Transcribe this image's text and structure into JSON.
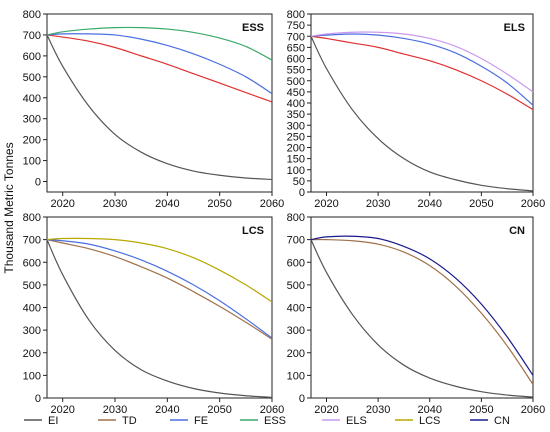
{
  "ylabel": "Thousand Metric Tonnes",
  "colors": {
    "EI": "#555555",
    "TD": "#a0704a",
    "FE": "#4a6ee0",
    "ESS": "#3aaa6a",
    "ELS": "#c99af0",
    "LCS": "#b8a800",
    "CN": "#1a1a8a",
    "REF": "#e03030"
  },
  "legend": [
    {
      "key": "EI",
      "label": "EI"
    },
    {
      "key": "TD",
      "label": "TD"
    },
    {
      "key": "FE",
      "label": "FE"
    },
    {
      "key": "ESS",
      "label": "ESS"
    },
    {
      "key": "ELS",
      "label": "ELS"
    },
    {
      "key": "LCS",
      "label": "LCS"
    },
    {
      "key": "CN",
      "label": "CN"
    }
  ],
  "chart_data": [
    {
      "type": "line",
      "title": "ESS",
      "xlim": [
        2017,
        2060
      ],
      "ylim": [
        -50,
        800
      ],
      "xticks": [
        "2020",
        "2030",
        "2040",
        "2050",
        "2060"
      ],
      "yticks": [
        "0",
        "100",
        "200",
        "300",
        "400",
        "500",
        "600",
        "700",
        "800"
      ],
      "x": [
        2017,
        2020,
        2025,
        2030,
        2035,
        2040,
        2045,
        2050,
        2055,
        2060
      ],
      "series": [
        {
          "key": "EI",
          "values": [
            700,
            550,
            360,
            225,
            140,
            85,
            50,
            30,
            17,
            10
          ]
        },
        {
          "key": "REF",
          "values": [
            700,
            690,
            670,
            640,
            600,
            560,
            515,
            470,
            425,
            380
          ]
        },
        {
          "key": "FE",
          "values": [
            700,
            705,
            705,
            700,
            680,
            650,
            610,
            560,
            500,
            420
          ]
        },
        {
          "key": "ESS",
          "values": [
            700,
            715,
            728,
            735,
            735,
            728,
            712,
            685,
            645,
            580
          ]
        }
      ]
    },
    {
      "type": "line",
      "title": "ELS",
      "xlim": [
        2017,
        2060
      ],
      "ylim": [
        0,
        800
      ],
      "xticks": [
        "2020",
        "2030",
        "2040",
        "2050",
        "2060"
      ],
      "yticks": [
        "0",
        "50",
        "100",
        "150",
        "200",
        "250",
        "300",
        "350",
        "400",
        "450",
        "500",
        "550",
        "600",
        "650",
        "700",
        "750",
        "800"
      ],
      "x": [
        2017,
        2020,
        2025,
        2030,
        2035,
        2040,
        2045,
        2050,
        2055,
        2060
      ],
      "series": [
        {
          "key": "EI",
          "values": [
            700,
            555,
            370,
            240,
            150,
            90,
            55,
            30,
            15,
            5
          ]
        },
        {
          "key": "REF",
          "values": [
            700,
            690,
            670,
            650,
            620,
            590,
            550,
            500,
            440,
            370
          ]
        },
        {
          "key": "FE",
          "values": [
            700,
            705,
            710,
            705,
            690,
            665,
            625,
            565,
            490,
            390
          ]
        },
        {
          "key": "ELS",
          "values": [
            700,
            710,
            718,
            718,
            710,
            690,
            655,
            600,
            530,
            450
          ]
        }
      ]
    },
    {
      "type": "line",
      "title": "LCS",
      "xlim": [
        2017,
        2060
      ],
      "ylim": [
        0,
        800
      ],
      "xticks": [
        "2020",
        "2030",
        "2040",
        "2050",
        "2060"
      ],
      "yticks": [
        "0",
        "100",
        "200",
        "300",
        "400",
        "500",
        "600",
        "700",
        "800"
      ],
      "x": [
        2017,
        2020,
        2025,
        2030,
        2035,
        2040,
        2045,
        2050,
        2055,
        2060
      ],
      "series": [
        {
          "key": "EI",
          "values": [
            700,
            545,
            345,
            210,
            125,
            75,
            42,
            22,
            10,
            3
          ]
        },
        {
          "key": "TD",
          "values": [
            700,
            685,
            660,
            625,
            580,
            530,
            470,
            405,
            335,
            260
          ]
        },
        {
          "key": "FE",
          "values": [
            700,
            695,
            680,
            650,
            610,
            560,
            500,
            430,
            350,
            265
          ]
        },
        {
          "key": "LCS",
          "values": [
            700,
            705,
            705,
            700,
            685,
            660,
            620,
            565,
            500,
            425
          ]
        }
      ]
    },
    {
      "type": "line",
      "title": "CN",
      "xlim": [
        2017,
        2060
      ],
      "ylim": [
        0,
        800
      ],
      "xticks": [
        "2020",
        "2030",
        "2040",
        "2050",
        "2060"
      ],
      "yticks": [
        "0",
        "100",
        "200",
        "300",
        "400",
        "500",
        "600",
        "700",
        "800"
      ],
      "x": [
        2017,
        2020,
        2025,
        2030,
        2035,
        2040,
        2045,
        2050,
        2055,
        2060
      ],
      "series": [
        {
          "key": "EI",
          "values": [
            700,
            555,
            370,
            235,
            145,
            88,
            52,
            28,
            13,
            4
          ]
        },
        {
          "key": "TD",
          "values": [
            700,
            700,
            695,
            680,
            645,
            585,
            495,
            375,
            230,
            60
          ]
        },
        {
          "key": "CN",
          "values": [
            700,
            712,
            715,
            705,
            670,
            615,
            530,
            415,
            270,
            100
          ]
        }
      ]
    }
  ]
}
